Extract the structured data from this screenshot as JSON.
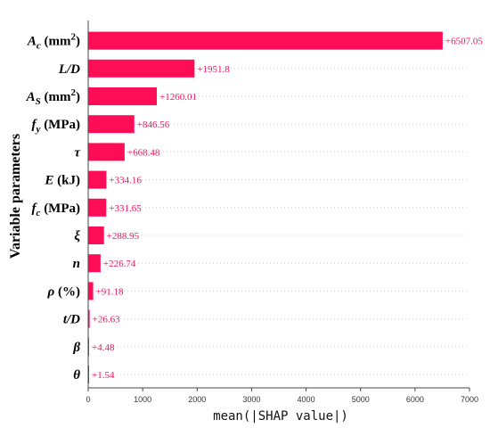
{
  "chart_data": {
    "type": "bar",
    "orientation": "horizontal",
    "categories": [
      {
        "base": "A",
        "sub": "c",
        "tail": " (mm",
        "sup": "2",
        "end": ")"
      },
      {
        "base": "L/D",
        "sub": "",
        "tail": "",
        "sup": "",
        "end": ""
      },
      {
        "base": "A",
        "sub": "S",
        "tail": " (mm",
        "sup": "2",
        "end": ")"
      },
      {
        "base": "f",
        "sub": "y",
        "tail": " (MPa)",
        "sup": "",
        "end": ""
      },
      {
        "base": "τ",
        "sub": "",
        "tail": "",
        "sup": "",
        "end": ""
      },
      {
        "base": "E",
        "sub": "",
        "tail": " (kJ)",
        "sup": "",
        "end": ""
      },
      {
        "base": "f",
        "sub": "c",
        "tail": " (MPa)",
        "sup": "",
        "end": ""
      },
      {
        "base": "ξ",
        "sub": "",
        "tail": "",
        "sup": "",
        "end": ""
      },
      {
        "base": "n",
        "sub": "",
        "tail": "",
        "sup": "",
        "end": ""
      },
      {
        "base": "ρ",
        "sub": "",
        "tail": " (%)",
        "sup": "",
        "end": ""
      },
      {
        "base": "t/D",
        "sub": "",
        "tail": "",
        "sup": "",
        "end": ""
      },
      {
        "base": "β",
        "sub": "",
        "tail": "",
        "sup": "",
        "end": ""
      },
      {
        "base": "θ",
        "sub": "",
        "tail": "",
        "sup": "",
        "end": ""
      }
    ],
    "values": [
      6507.05,
      1951.8,
      1260.01,
      846.56,
      668.48,
      334.16,
      331.65,
      288.95,
      226.74,
      91.18,
      26.63,
      4.48,
      1.54
    ],
    "value_labels": [
      "+6507.05",
      "+1951.8",
      "+1260.01",
      "+846.56",
      "+668.48",
      "+334.16",
      "+331.65",
      "+288.95",
      "+226.74",
      "+91.18",
      "+26.63",
      "+4.48",
      "+1.54"
    ],
    "xlabel": "mean(|SHAP value|)",
    "ylabel": "Variable parameters",
    "xlim": [
      0,
      7000
    ],
    "xticks": [
      0,
      1000,
      2000,
      3000,
      4000,
      5000,
      6000,
      7000
    ],
    "grid": "horizontal dotted",
    "colors": {
      "bar": "#ff0d57",
      "label": "#e8175d"
    }
  }
}
